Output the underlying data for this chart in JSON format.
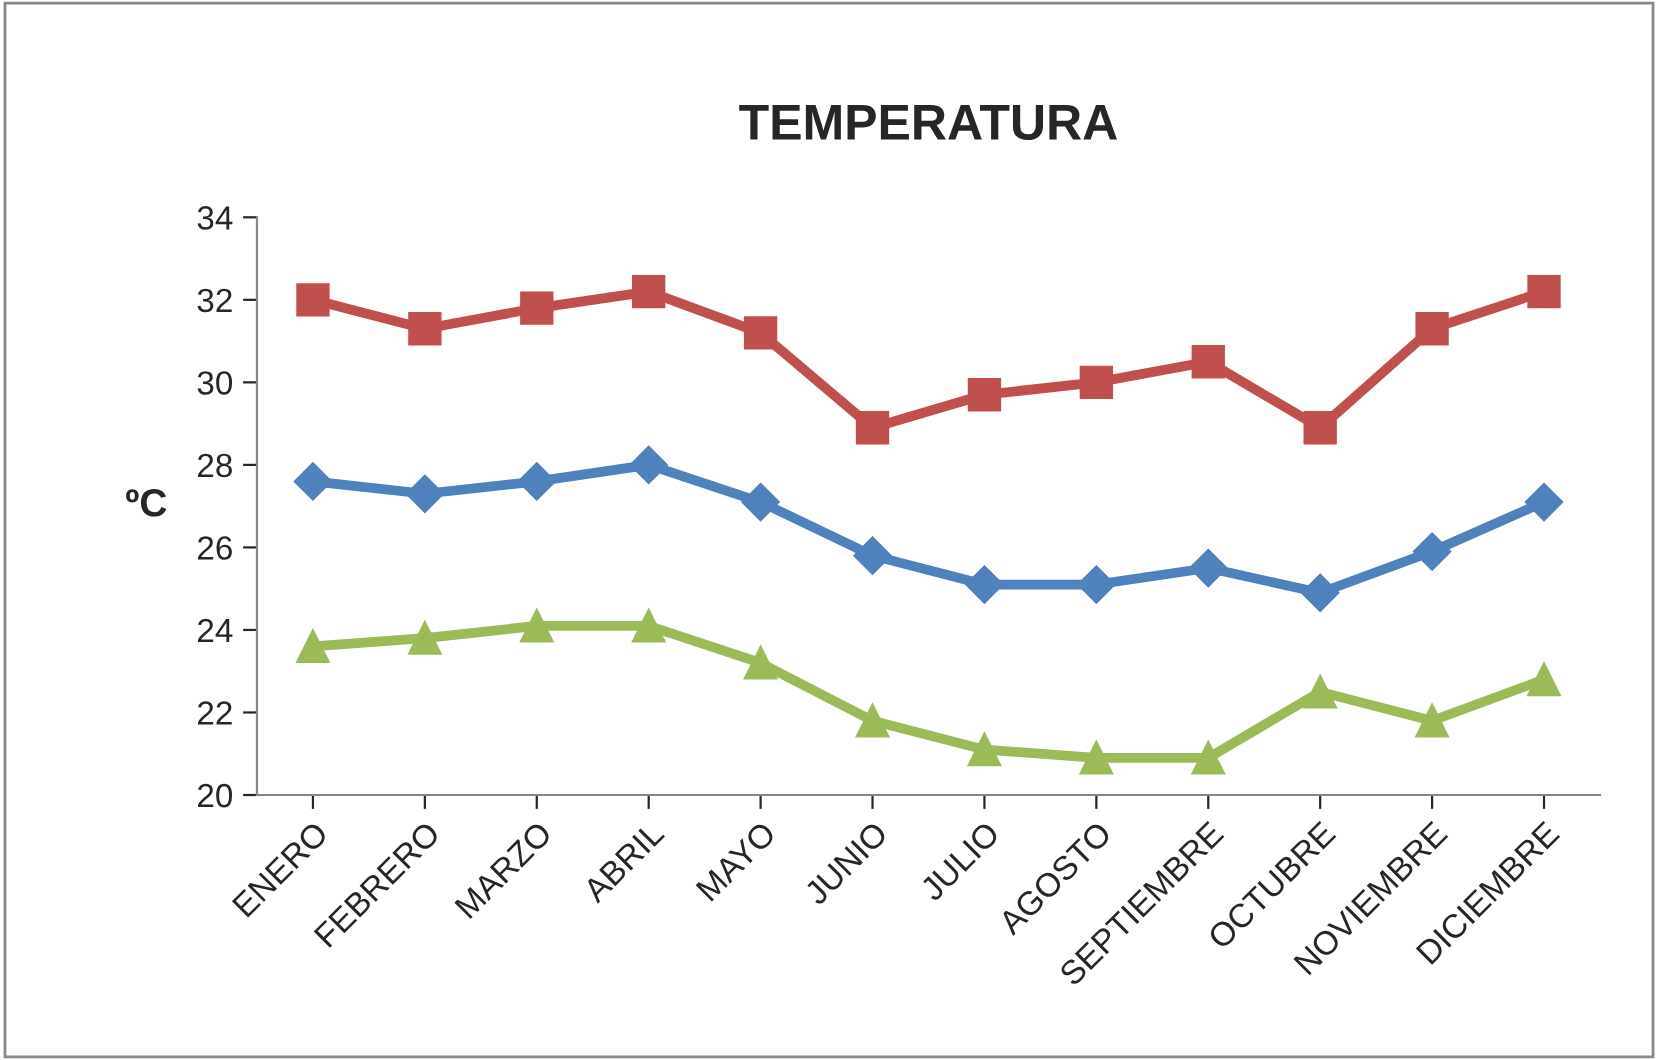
{
  "chart_data": {
    "type": "line",
    "title": "TEMPERATURA",
    "ylabel": "ºC",
    "categories": [
      "ENERO",
      "FEBRERO",
      "MARZO",
      "ABRIL",
      "MAYO",
      "JUNIO",
      "JULIO",
      "AGOSTO",
      "SEPTIEMBRE",
      "OCTUBRE",
      "NOVIEMBRE",
      "DICIEMBRE"
    ],
    "series": [
      {
        "color": "#c0504d",
        "marker": "square",
        "values": [
          32.0,
          31.3,
          31.8,
          32.2,
          31.2,
          28.9,
          29.7,
          30.0,
          30.5,
          28.9,
          31.3,
          32.2
        ]
      },
      {
        "color": "#4f81bd",
        "marker": "diamond",
        "values": [
          27.6,
          27.3,
          27.6,
          28.0,
          27.1,
          25.8,
          25.1,
          25.1,
          25.5,
          24.9,
          25.9,
          27.1
        ]
      },
      {
        "color": "#9bbb59",
        "marker": "triangle",
        "values": [
          23.6,
          23.8,
          24.1,
          24.1,
          23.2,
          21.8,
          21.1,
          20.9,
          20.9,
          22.5,
          21.8,
          22.8
        ]
      }
    ],
    "ylim": [
      20,
      34
    ],
    "yticks": [
      20,
      22,
      24,
      26,
      28,
      30,
      32,
      34
    ],
    "grid": false,
    "legend": false,
    "line_style": "solid"
  }
}
